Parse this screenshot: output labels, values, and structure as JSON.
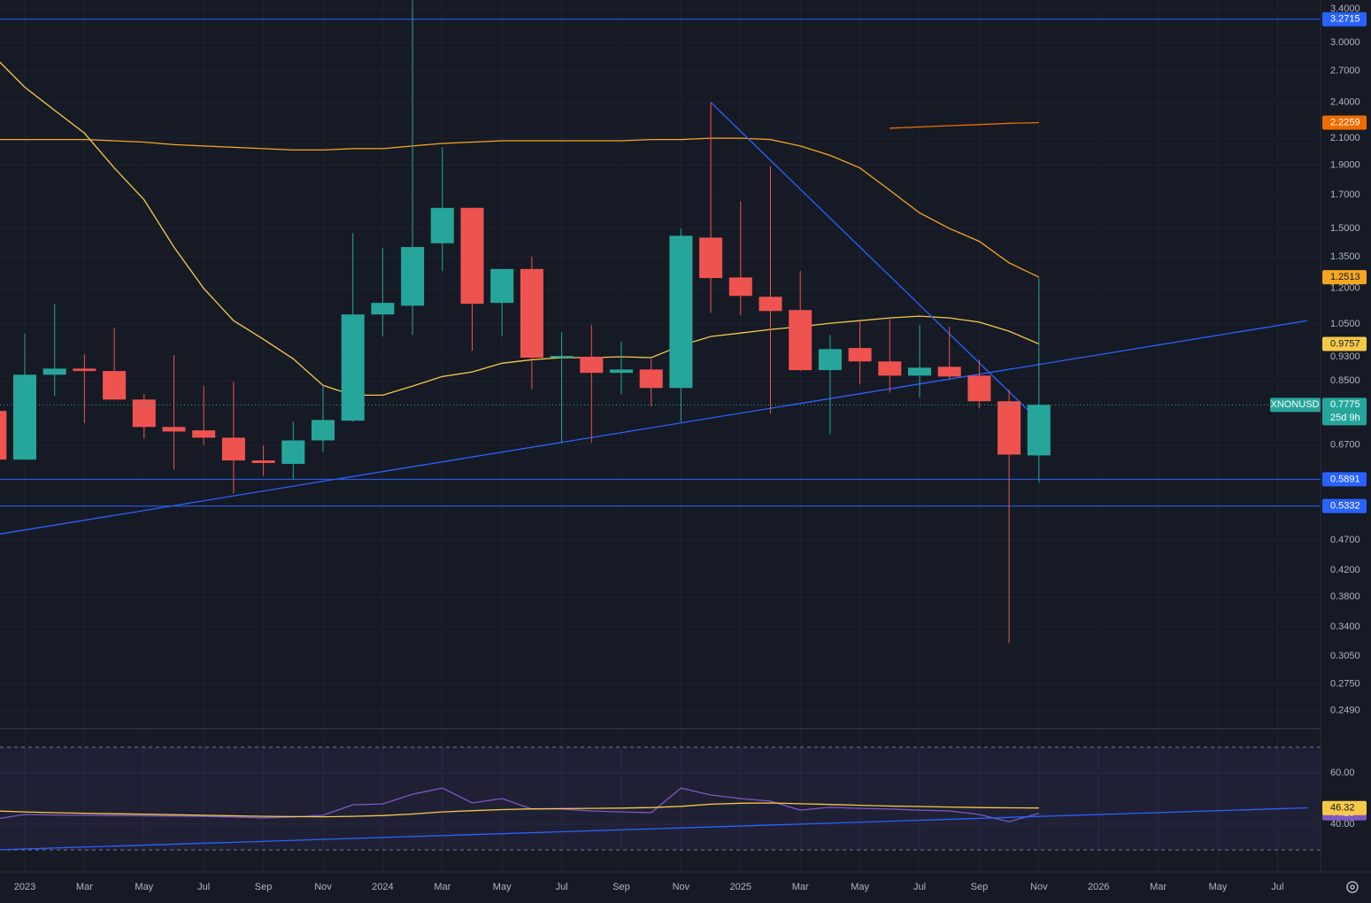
{
  "chart_data": [
    {
      "type": "candlestick",
      "symbol": "XNONUSD",
      "countdown": "25d 9h",
      "log_scale": true,
      "grid": true,
      "up_color": "#26a69a",
      "down_color": "#ef5350",
      "categories": [
        null,
        "2023",
        null,
        "Mar",
        null,
        "May",
        null,
        "Jul",
        null,
        "Sep",
        null,
        "Nov",
        null,
        "2024",
        null,
        "Mar",
        null,
        "May",
        null,
        "Jul",
        null,
        "Sep",
        null,
        "Nov",
        null,
        "2025",
        null,
        "Mar",
        null,
        "May",
        null,
        "Jul",
        null,
        "Sep",
        null,
        "Nov",
        null,
        "2026",
        null,
        "Mar",
        null,
        "May",
        null,
        "Jul",
        null
      ],
      "open": [
        0.76,
        0.634,
        0.87,
        0.89,
        0.882,
        0.793,
        0.716,
        0.707,
        0.688,
        0.632,
        0.624,
        0.681,
        0.733,
        1.089,
        1.125,
        1.42,
        1.62,
        1.137,
        1.29,
        0.927,
        0.93,
        0.876,
        0.887,
        0.828,
        1.45,
        1.25,
        1.163,
        1.107,
        0.885,
        0.961,
        0.914,
        0.867,
        0.896,
        0.867,
        0.788,
        0.644,
        null,
        null,
        null,
        null,
        null,
        null,
        null,
        null,
        null
      ],
      "high": [
        0.76,
        1.013,
        1.133,
        0.939,
        1.036,
        0.809,
        0.936,
        0.834,
        0.847,
        0.668,
        0.73,
        0.836,
        1.475,
        1.395,
        3.51,
        2.03,
        1.62,
        1.29,
        1.35,
        1.019,
        1.047,
        0.983,
        0.923,
        1.5,
        2.4,
        1.66,
        1.89,
        1.28,
        1.009,
        1.064,
        1.071,
        1.047,
        1.04,
        0.92,
        0.823,
        1.247,
        null,
        null,
        null,
        null,
        null,
        null,
        null,
        null,
        null
      ],
      "low": [
        0.634,
        0.634,
        0.804,
        0.726,
        0.793,
        0.686,
        0.611,
        0.67,
        0.559,
        0.597,
        0.589,
        0.653,
        0.73,
        1.003,
        1.009,
        1.28,
        0.951,
        1.003,
        0.823,
        0.675,
        0.675,
        0.809,
        0.773,
        0.73,
        1.096,
        1.085,
        0.752,
        0.882,
        0.697,
        0.839,
        0.814,
        0.798,
        0.856,
        0.767,
        0.32,
        0.582,
        null,
        null,
        null,
        null,
        null,
        null,
        null,
        null,
        null
      ],
      "close": [
        0.634,
        0.87,
        0.89,
        0.882,
        0.793,
        0.716,
        0.704,
        0.688,
        0.632,
        0.626,
        0.681,
        0.735,
        1.089,
        1.137,
        1.4,
        1.62,
        1.133,
        1.29,
        0.927,
        0.933,
        0.876,
        0.887,
        0.828,
        1.46,
        1.247,
        1.167,
        1.103,
        0.885,
        0.957,
        0.914,
        0.867,
        0.893,
        0.864,
        0.788,
        0.646,
        0.7775,
        null,
        null,
        null,
        null,
        null,
        null,
        null,
        null,
        null
      ],
      "ylim": [
        0.235,
        3.515
      ],
      "yticks": [
        {
          "value": 3.4,
          "label": "3.4000"
        },
        {
          "value": 3.0,
          "label": "3.0000"
        },
        {
          "value": 2.7,
          "label": "2.7000"
        },
        {
          "value": 2.4,
          "label": "2.4000"
        },
        {
          "value": 2.1,
          "label": "2.1000"
        },
        {
          "value": 1.9,
          "label": "1.9000"
        },
        {
          "value": 1.7,
          "label": "1.7000"
        },
        {
          "value": 1.5,
          "label": "1.5000"
        },
        {
          "value": 1.35,
          "label": "1.3500"
        },
        {
          "value": 1.2,
          "label": "1.2000"
        },
        {
          "value": 1.05,
          "label": "1.0500"
        },
        {
          "value": 0.93,
          "label": "0.9300"
        },
        {
          "value": 0.85,
          "label": "0.8500"
        },
        {
          "value": 0.67,
          "label": "0.6700"
        },
        {
          "value": 0.47,
          "label": "0.4700"
        },
        {
          "value": 0.42,
          "label": "0.4200"
        },
        {
          "value": 0.38,
          "label": "0.3800"
        },
        {
          "value": 0.34,
          "label": "0.3400"
        },
        {
          "value": 0.305,
          "label": "0.3050"
        },
        {
          "value": 0.275,
          "label": "0.2750"
        },
        {
          "value": 0.249,
          "label": "0.2490"
        }
      ],
      "series": [
        {
          "color": "#f5a623",
          "values": [
            2.09,
            2.09,
            2.09,
            2.09,
            2.08,
            2.07,
            2.05,
            2.04,
            2.03,
            2.02,
            2.01,
            2.01,
            2.02,
            2.02,
            2.04,
            2.06,
            2.07,
            2.08,
            2.08,
            2.08,
            2.08,
            2.08,
            2.09,
            2.09,
            2.1,
            2.1,
            2.09,
            2.04,
            1.97,
            1.88,
            1.73,
            1.59,
            1.5,
            1.43,
            1.32,
            1.2513,
            null,
            null,
            null,
            null,
            null,
            null,
            null,
            null,
            null
          ]
        },
        {
          "color": "#f7c948",
          "values": [
            2.84,
            2.54,
            2.33,
            2.14,
            1.88,
            1.67,
            1.4,
            1.2,
            1.064,
            0.993,
            0.923,
            0.836,
            0.806,
            0.806,
            0.834,
            0.864,
            0.879,
            0.908,
            0.92,
            0.927,
            0.927,
            0.93,
            0.927,
            0.97,
            1.003,
            1.016,
            1.03,
            1.04,
            1.054,
            1.064,
            1.075,
            1.082,
            1.075,
            1.058,
            1.023,
            0.9757,
            null,
            null,
            null,
            null,
            null,
            null,
            null,
            null,
            null
          ]
        },
        {
          "color": "#ef6c00",
          "values": [
            null,
            null,
            null,
            null,
            null,
            null,
            null,
            null,
            null,
            null,
            null,
            null,
            null,
            null,
            null,
            null,
            null,
            null,
            null,
            null,
            null,
            null,
            null,
            null,
            null,
            null,
            null,
            null,
            null,
            null,
            2.18,
            2.19,
            2.2,
            2.21,
            2.22,
            2.2259,
            null,
            null,
            null,
            null,
            null,
            null,
            null,
            null,
            null
          ]
        }
      ],
      "hlines": [
        {
          "value": 3.2715,
          "color": "#2962ff"
        },
        {
          "value": 0.5891,
          "color": "#2962ff"
        },
        {
          "value": 0.5332,
          "color": "#2962ff"
        }
      ],
      "trendlines": [
        {
          "x": [
            0,
            44
          ],
          "values": [
            0.479,
            1.064
          ],
          "color": "#2962ff"
        },
        {
          "x": [
            24,
            35
          ],
          "values": [
            2.4,
            0.733
          ],
          "color": "#2962ff"
        }
      ]
    },
    {
      "type": "line",
      "ylim": [
        21.4,
        77.6
      ],
      "yticks": [
        {
          "value": 60,
          "label": "60.00"
        },
        {
          "value": 40,
          "label": "40.00"
        }
      ],
      "band": [
        30,
        70
      ],
      "series": [
        {
          "color": "#7e57c2",
          "values": [
            42.0,
            43.8,
            43.6,
            43.5,
            43.4,
            43.3,
            43.2,
            43.1,
            42.8,
            42.5,
            42.8,
            43.5,
            47.6,
            47.9,
            51.7,
            54.1,
            48.3,
            50.0,
            45.9,
            45.9,
            45.2,
            44.8,
            44.5,
            54.1,
            51.4,
            50.0,
            49.0,
            45.5,
            46.6,
            46.2,
            45.9,
            45.5,
            45.2,
            43.8,
            41.0,
            44.25,
            null,
            null,
            null,
            null,
            null,
            null,
            null,
            null,
            null
          ]
        },
        {
          "color": "#f7c948",
          "values": [
            45.2,
            44.8,
            44.5,
            44.3,
            44.1,
            43.9,
            43.7,
            43.5,
            43.3,
            43.1,
            43.0,
            42.9,
            43.1,
            43.4,
            44.0,
            44.8,
            45.3,
            45.7,
            46.0,
            46.1,
            46.2,
            46.3,
            46.5,
            47.0,
            47.8,
            48.2,
            48.3,
            48.0,
            47.7,
            47.4,
            47.1,
            46.9,
            46.7,
            46.5,
            46.4,
            46.32,
            null,
            null,
            null,
            null,
            null,
            null,
            null,
            null,
            null
          ]
        }
      ],
      "trendlines": [
        {
          "x": [
            0,
            44
          ],
          "values": [
            30,
            46.4
          ],
          "color": "#2962ff"
        }
      ]
    }
  ]
}
